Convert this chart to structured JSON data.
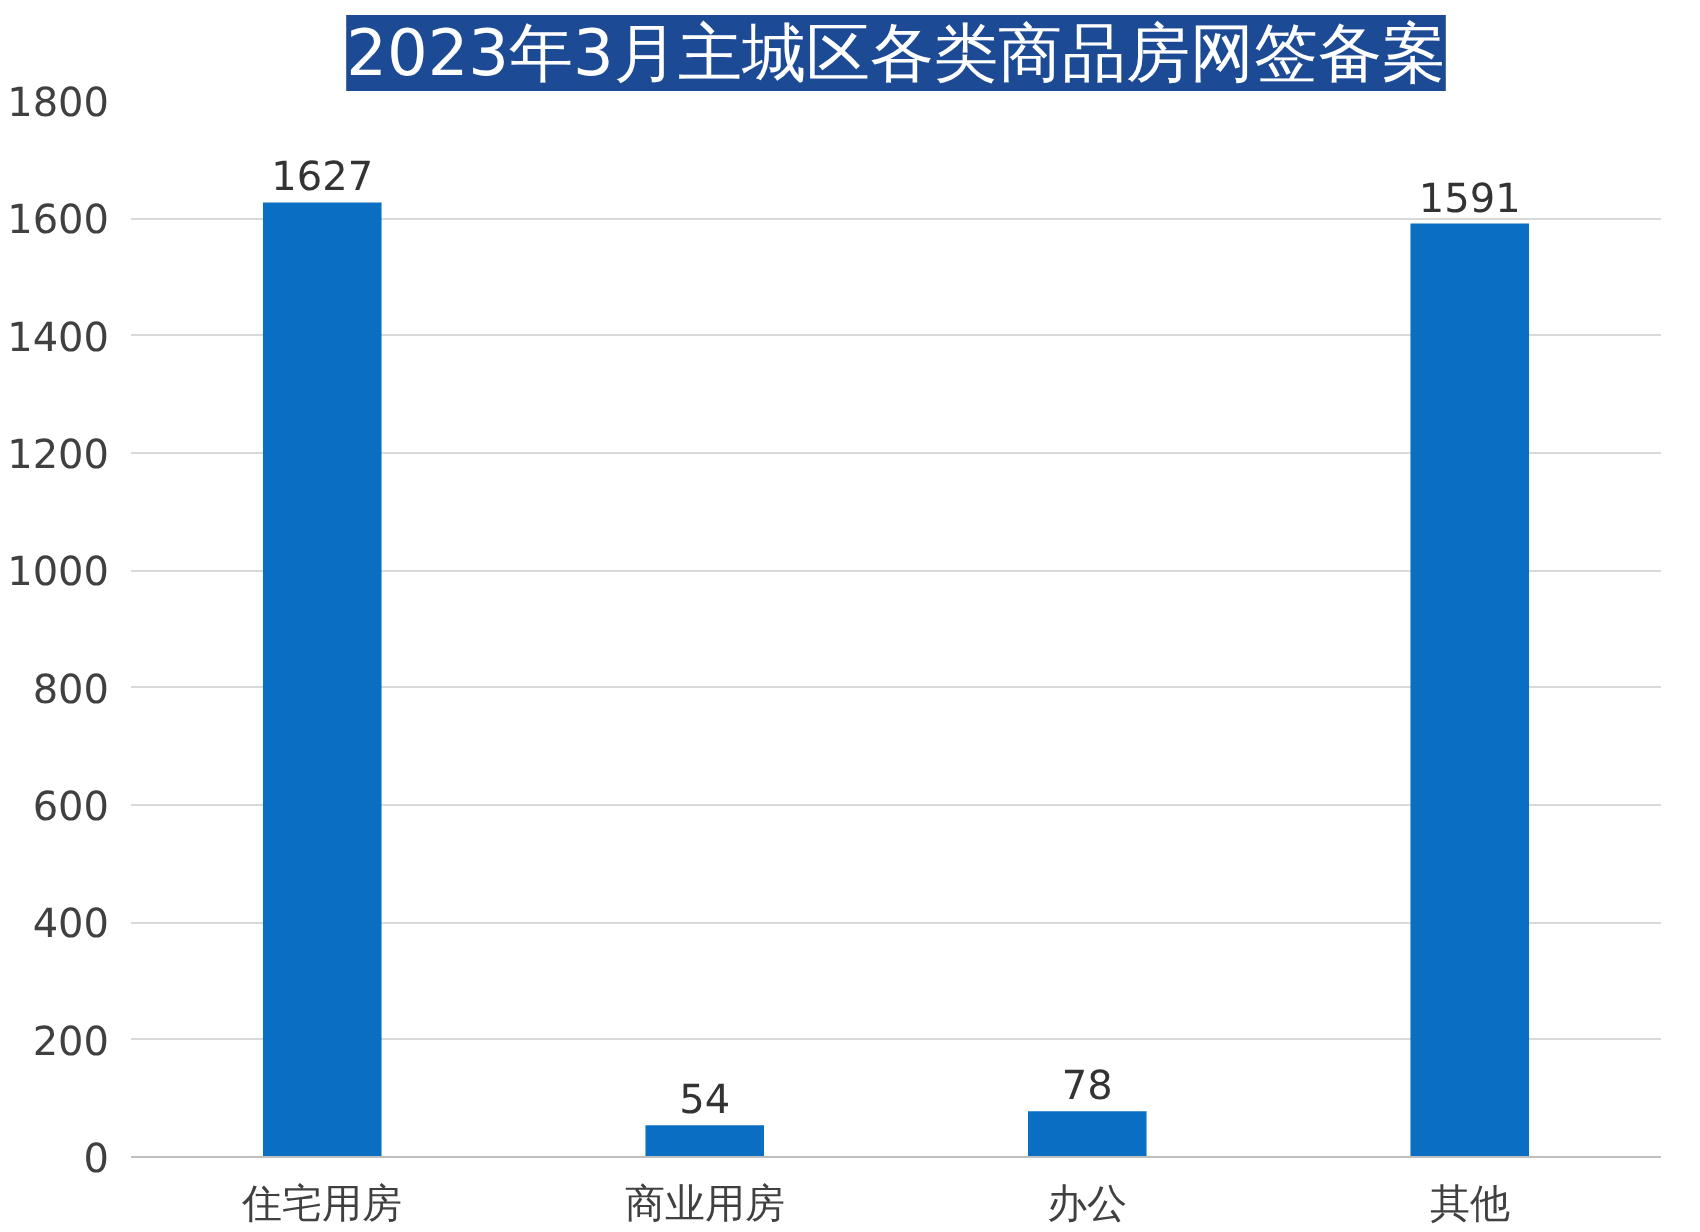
{
  "chart_data": {
    "type": "bar",
    "title": "2023年3月主城区各类商品房网签备案",
    "categories": [
      "住宅用房",
      "商业用房",
      "办公",
      "其他"
    ],
    "values": [
      1627,
      54,
      78,
      1591
    ],
    "color": "#0a6fc2",
    "ylim": [
      0,
      1800
    ],
    "yticks": [
      0,
      200,
      400,
      600,
      800,
      1000,
      1200,
      1400,
      1600,
      1800
    ],
    "grid": "y",
    "data_labels": true
  }
}
